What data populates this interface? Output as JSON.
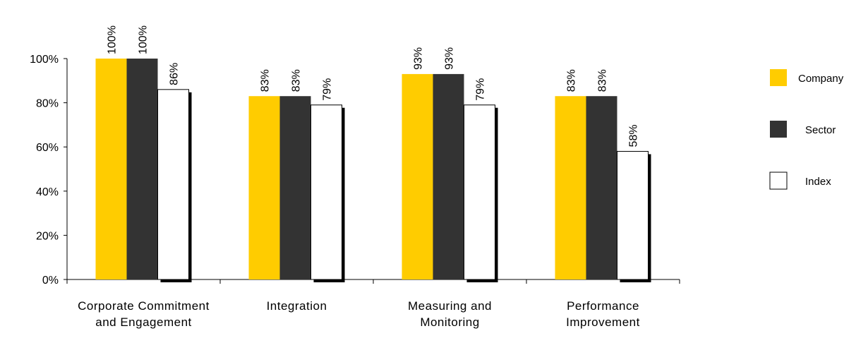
{
  "chart_data": {
    "type": "bar",
    "categories": [
      "Corporate Commitment and Engagement",
      "Integration",
      "Measuring and Monitoring",
      "Performance Improvement"
    ],
    "series": [
      {
        "name": "Company",
        "color": "#FFCC00",
        "values": [
          100,
          83,
          93,
          83
        ],
        "value_labels": [
          "100%",
          "83%",
          "93%",
          "83%"
        ]
      },
      {
        "name": "Sector",
        "color": "#333333",
        "values": [
          100,
          83,
          93,
          83
        ],
        "value_labels": [
          "100%",
          "83%",
          "93%",
          "83%"
        ]
      },
      {
        "name": "Index",
        "color": "#FFFFFF",
        "values": [
          86,
          79,
          79,
          58
        ],
        "value_labels": [
          "86%",
          "79%",
          "79%",
          "58%"
        ]
      }
    ],
    "ylim": [
      0,
      100
    ],
    "yticks": [
      {
        "value": 0,
        "label": "0%"
      },
      {
        "value": 20,
        "label": "20%"
      },
      {
        "value": 40,
        "label": "40%"
      },
      {
        "value": 60,
        "label": "60%"
      },
      {
        "value": 80,
        "label": "80%"
      },
      {
        "value": 100,
        "label": "100%"
      }
    ],
    "legend": "right"
  }
}
